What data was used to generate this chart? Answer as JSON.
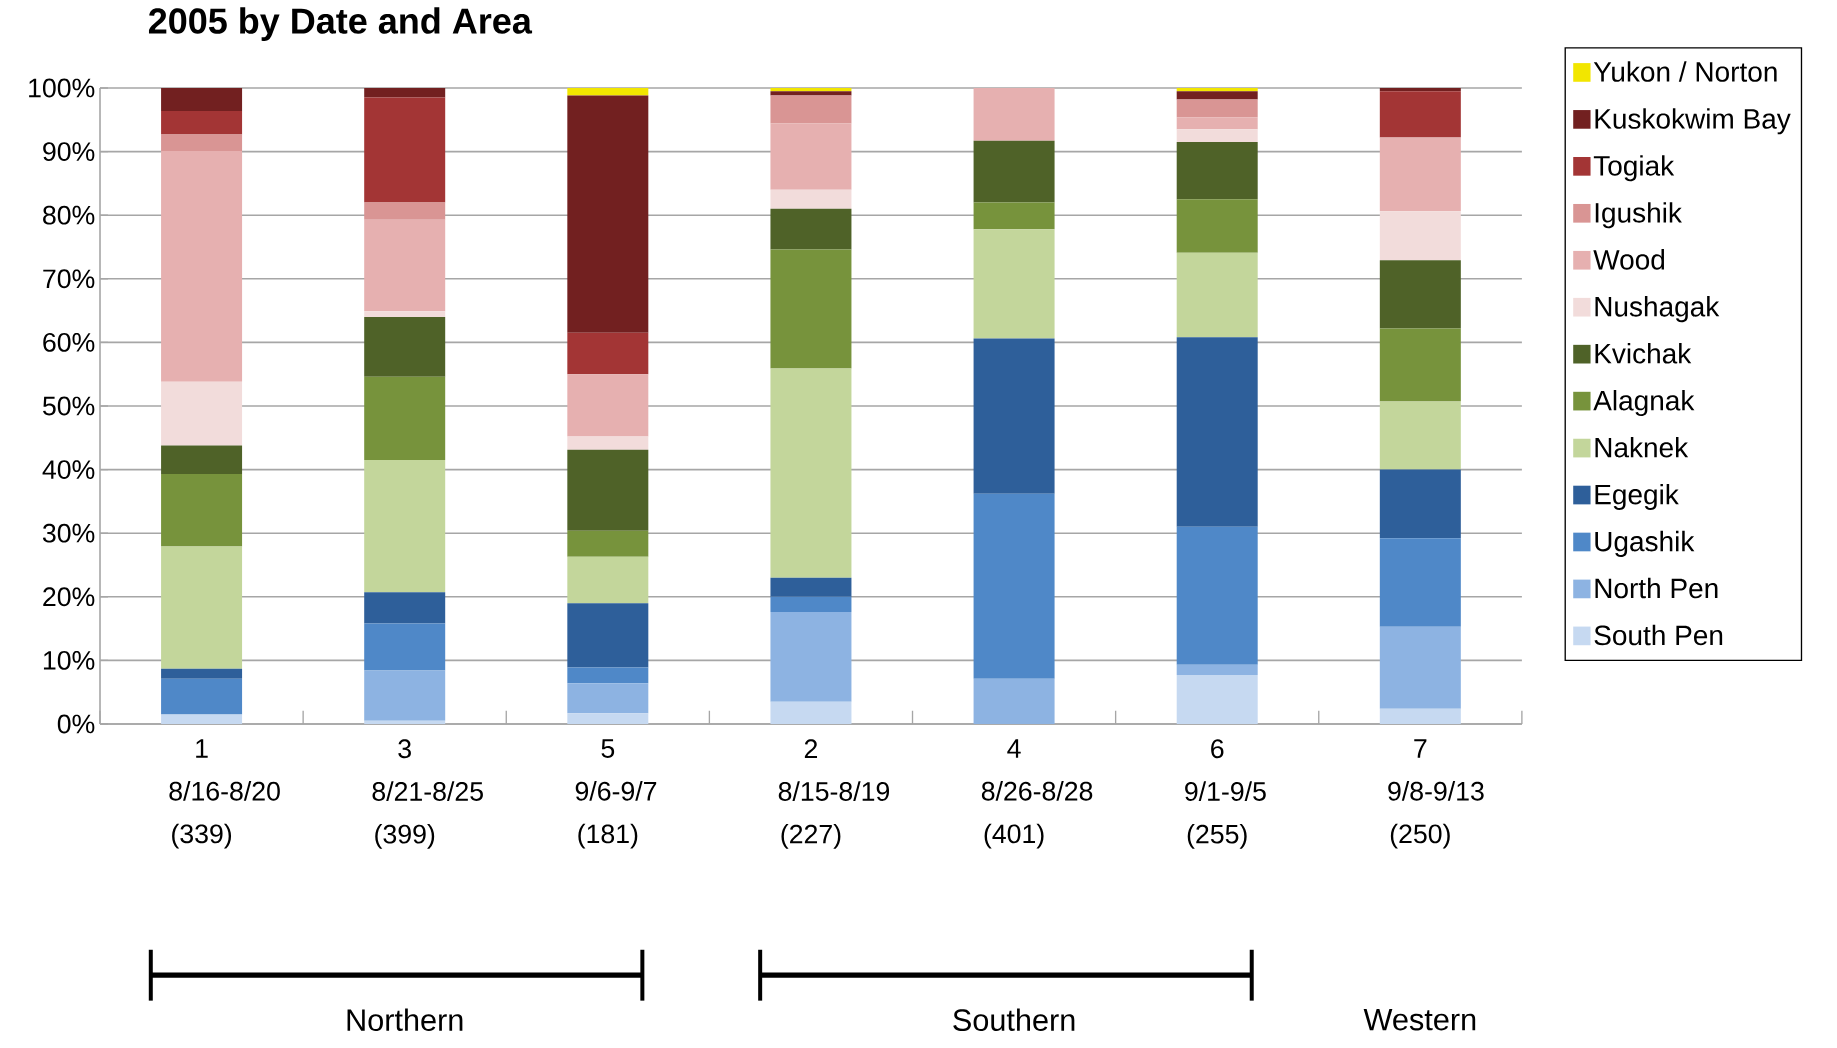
{
  "chart_data": {
    "type": "bar",
    "stacked": true,
    "title": "2005 by Date and Area",
    "categories": [
      "1 8/16-8/20 (339)",
      "3 8/21-8/25 (399)",
      "5 9/6-9/7 (181)",
      "2 8/15-8/19 (227)",
      "4 8/26-8/28 (401)",
      "6 9/1-9/5 (255)",
      "7 9/8-9/13 (250)"
    ],
    "series": [
      {
        "name": "South Pen",
        "color": "#c6d9f1",
        "values": [
          1.5,
          0.5,
          1.7,
          3.5,
          0,
          7.7,
          2.4
        ]
      },
      {
        "name": "North Pen",
        "color": "#8db3e2",
        "values": [
          0,
          7.9,
          4.7,
          14.1,
          7.1,
          1.6,
          12.9
        ]
      },
      {
        "name": "Ugashik",
        "color": "#4f88c8",
        "values": [
          5.6,
          7.4,
          2.5,
          2.4,
          29.1,
          21.7,
          13.9
        ]
      },
      {
        "name": "Egegik",
        "color": "#2e5f9a",
        "values": [
          1.6,
          4.9,
          10.1,
          3.0,
          24.4,
          29.8,
          10.8
        ]
      },
      {
        "name": "Naknek",
        "color": "#c3d69b",
        "values": [
          19.2,
          20.8,
          7.3,
          32.9,
          17.2,
          13.3,
          10.7
        ]
      },
      {
        "name": "Alagnak",
        "color": "#77933c",
        "values": [
          11.4,
          13.1,
          4.1,
          18.7,
          4.2,
          8.4,
          11.5
        ]
      },
      {
        "name": "Kvichak",
        "color": "#4f6228",
        "values": [
          4.5,
          9.4,
          12.7,
          6.4,
          9.7,
          9.0,
          10.7
        ]
      },
      {
        "name": "Nushagak",
        "color": "#f2dcdb",
        "values": [
          10.0,
          0.9,
          2.1,
          3.0,
          0,
          2.0,
          7.7
        ]
      },
      {
        "name": "Wood",
        "color": "#e6b0b0",
        "values": [
          36.3,
          14.4,
          9.8,
          10.4,
          8.3,
          1.9,
          11.6
        ]
      },
      {
        "name": "Igushik",
        "color": "#d99594",
        "values": [
          2.6,
          2.7,
          0,
          4.4,
          0,
          2.8,
          0
        ]
      },
      {
        "name": "Togiak",
        "color": "#a33535",
        "values": [
          3.7,
          16.5,
          6.5,
          0,
          0,
          0,
          7.3
        ]
      },
      {
        "name": "Kuskokwim Bay",
        "color": "#722020",
        "values": [
          3.6,
          1.5,
          37.3,
          0.7,
          0,
          1.3,
          0.5
        ]
      },
      {
        "name": "Yukon / Norton",
        "color": "#f2e600",
        "values": [
          0,
          0,
          1.2,
          0.5,
          0,
          0.5,
          0
        ]
      }
    ],
    "ylim": [
      0,
      100
    ],
    "yticks": [
      {
        "value": 0,
        "label": "0%"
      },
      {
        "value": 10,
        "label": "10%"
      },
      {
        "value": 20,
        "label": "20%"
      },
      {
        "value": 30,
        "label": "30%"
      },
      {
        "value": 40,
        "label": "40%"
      },
      {
        "value": 50,
        "label": "50%"
      },
      {
        "value": 60,
        "label": "60%"
      },
      {
        "value": 70,
        "label": "70%"
      },
      {
        "value": 80,
        "label": "80%"
      },
      {
        "value": 90,
        "label": "90%"
      },
      {
        "value": 100,
        "label": "100%"
      }
    ],
    "grid": "y",
    "legend": "right",
    "annotations": [
      "Northern",
      "Southern",
      "Western"
    ]
  }
}
